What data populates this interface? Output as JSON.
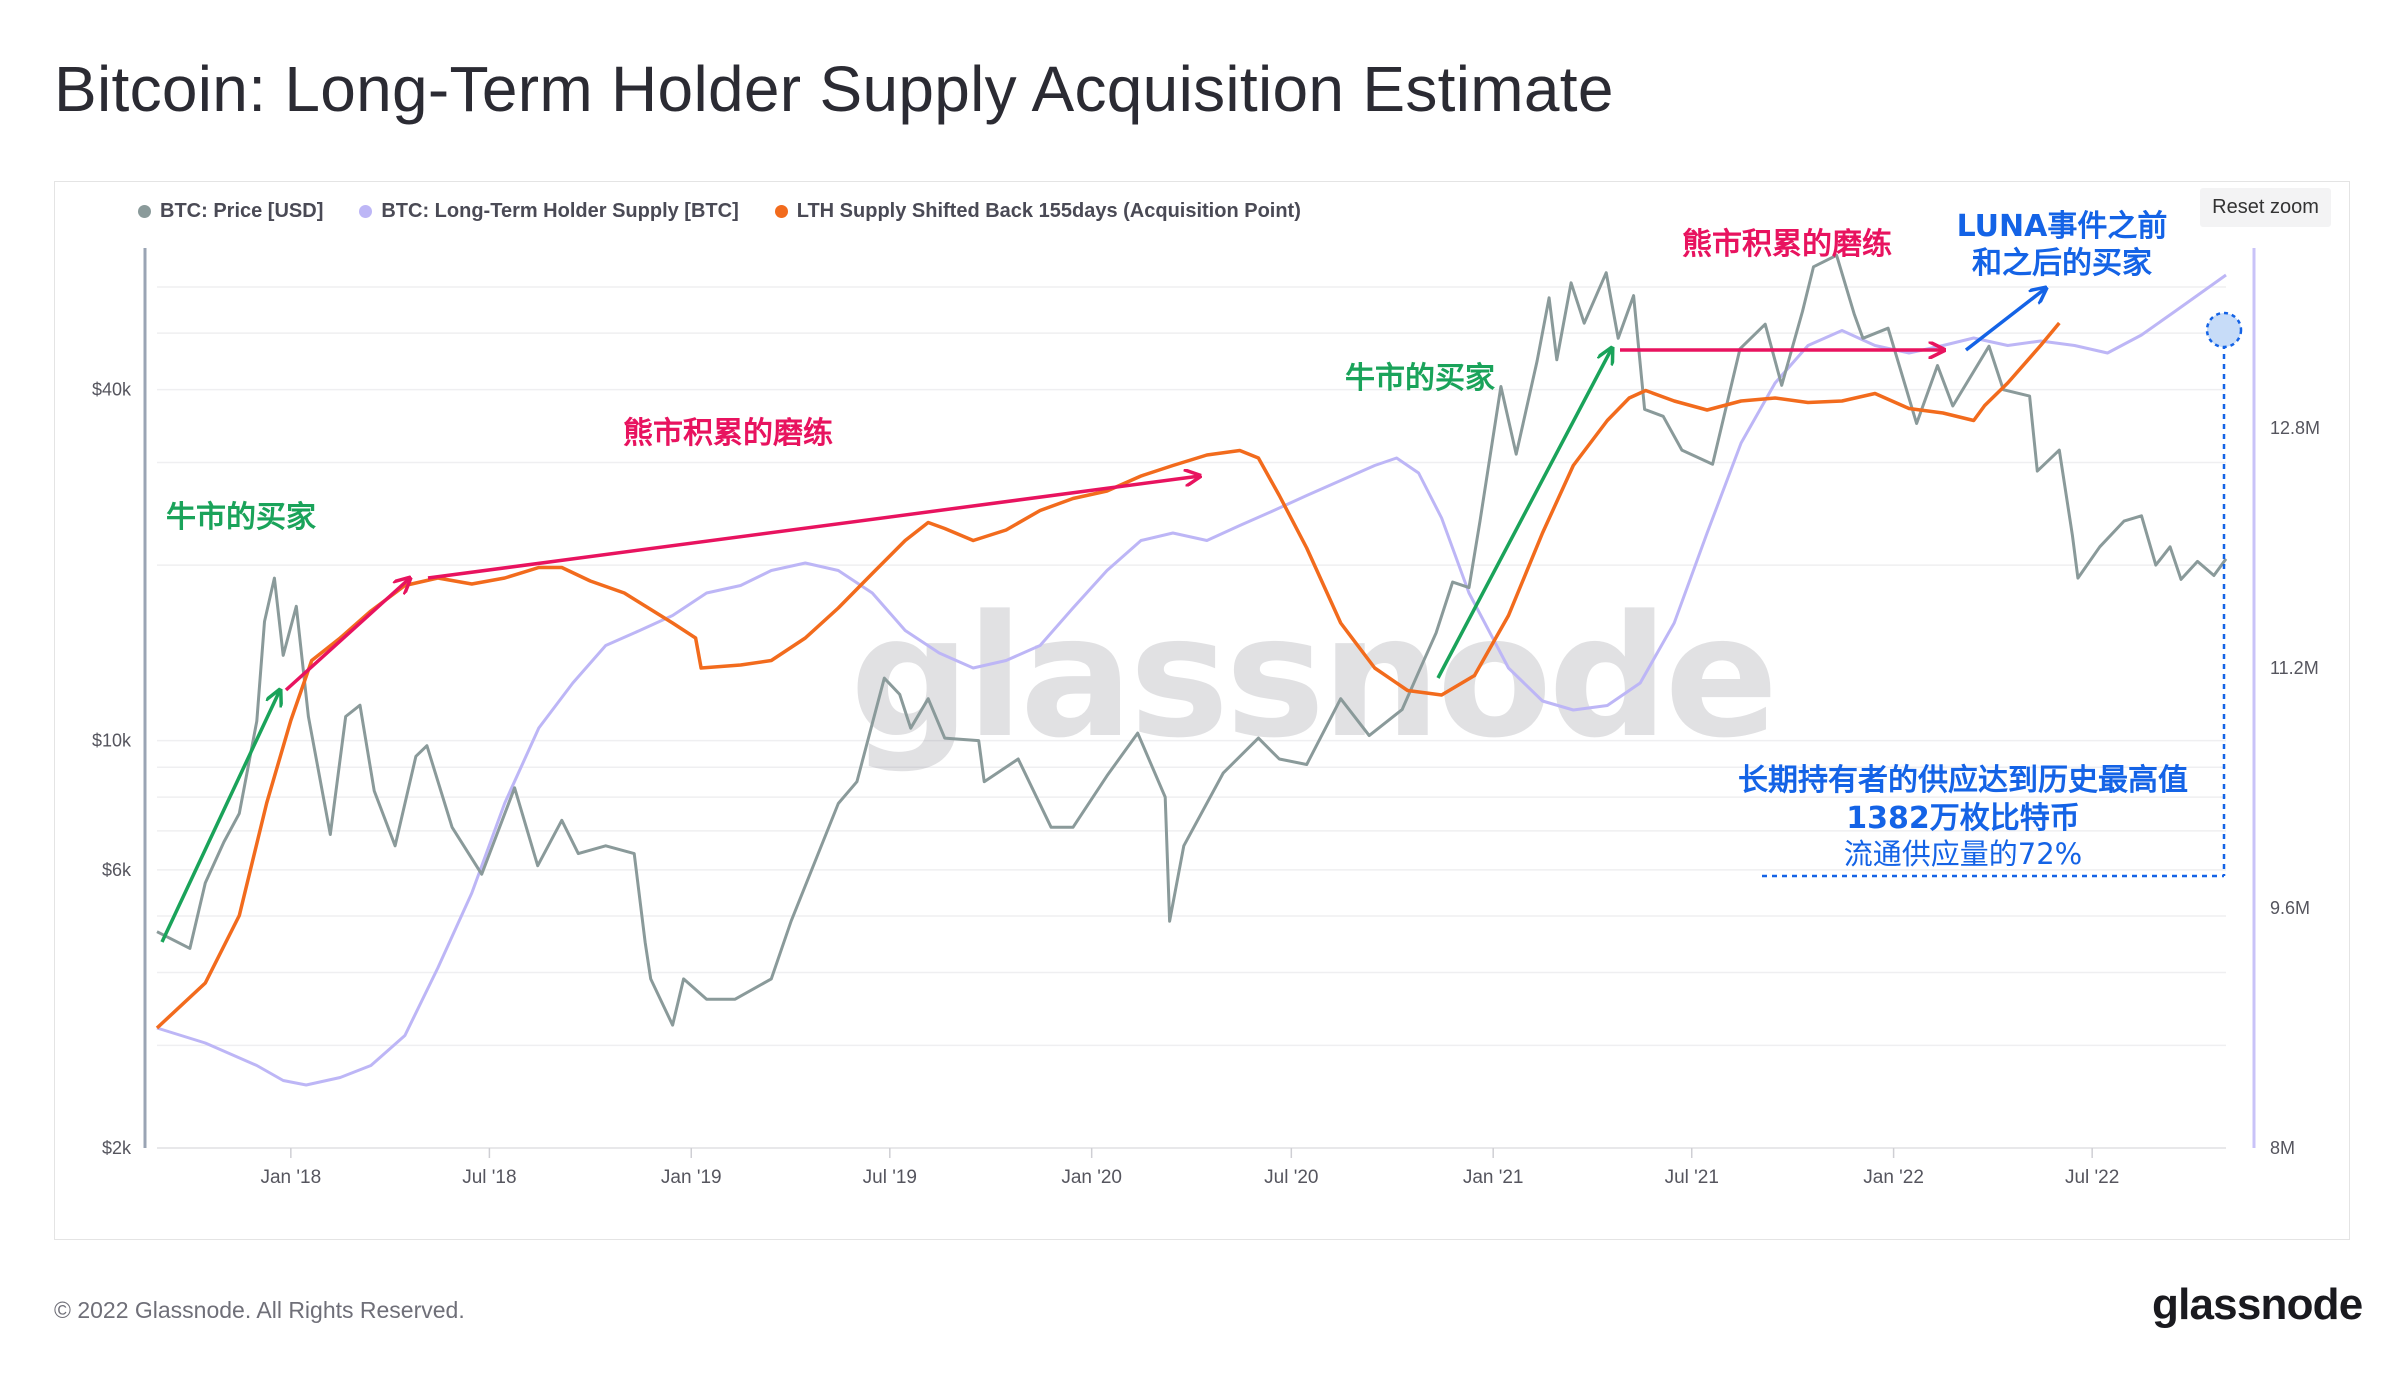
{
  "page": {
    "title": "Bitcoin: Long-Term Holder Supply Acquisition Estimate",
    "footer": "© 2022 Glassnode. All Rights Reserved.",
    "brand": "glassnode",
    "watermark": "glassnode",
    "reset_zoom": "Reset zoom"
  },
  "colors": {
    "price": "#8a9a9a",
    "lth_supply": "#bdb6f6",
    "lth_shifted": "#f26b1d",
    "bull_green": "#1aa35a",
    "bear_pink": "#e8135f",
    "blue": "#1463e6"
  },
  "legend": [
    {
      "label": "BTC: Price [USD]",
      "color": "#8a9a9a"
    },
    {
      "label": "BTC: Long-Term Holder Supply [BTC]",
      "color": "#bdb6f6"
    },
    {
      "label": "LTH Supply Shifted Back 155days (Acquisition Point)",
      "color": "#f26b1d"
    }
  ],
  "annotations": {
    "bull_buyers": "牛市的买家",
    "bear_accumulation": "熊市积累的磨练",
    "luna_line1": "LUNA事件之前",
    "luna_line2": "和之后的买家",
    "ath_line1": "长期持有者的供应达到历史最高值",
    "ath_line2": "1382万枚比特币",
    "ath_line3": "流通供应量的72%"
  },
  "chart_data": {
    "type": "line",
    "title": "Bitcoin: Long-Term Holder Supply Acquisition Estimate",
    "x_ticks": [
      "Jan '18",
      "Jul '18",
      "Jan '19",
      "Jul '19",
      "Jan '20",
      "Jul '20",
      "Jan '21",
      "Jul '21",
      "Jan '22",
      "Jul '22"
    ],
    "y_left": {
      "scale": "log",
      "ticks": [
        "$2k",
        "$6k",
        "$10k",
        "$40k"
      ],
      "tick_values": [
        2000,
        6000,
        10000,
        40000
      ],
      "range": [
        2000,
        70000
      ]
    },
    "y_right": {
      "scale": "linear",
      "ticks": [
        "8M",
        "9.6M",
        "11.2M",
        "12.8M"
      ],
      "tick_values": [
        8.0,
        9.6,
        11.2,
        12.8
      ],
      "range": [
        8.0,
        14.0
      ],
      "unit": "M BTC"
    },
    "series": [
      {
        "name": "BTC: Price [USD]",
        "axis": "left",
        "points": [
          [
            "2017-09-01",
            4700
          ],
          [
            "2017-10-01",
            4400
          ],
          [
            "2017-10-15",
            5700
          ],
          [
            "2017-11-01",
            6700
          ],
          [
            "2017-11-15",
            7500
          ],
          [
            "2017-12-01",
            10800
          ],
          [
            "2017-12-08",
            16000
          ],
          [
            "2017-12-17",
            19000
          ],
          [
            "2017-12-25",
            14000
          ],
          [
            "2018-01-06",
            17000
          ],
          [
            "2018-01-17",
            11000
          ],
          [
            "2018-02-06",
            6900
          ],
          [
            "2018-02-20",
            11000
          ],
          [
            "2018-03-05",
            11500
          ],
          [
            "2018-03-18",
            8200
          ],
          [
            "2018-04-06",
            6600
          ],
          [
            "2018-04-25",
            9400
          ],
          [
            "2018-05-05",
            9800
          ],
          [
            "2018-05-28",
            7100
          ],
          [
            "2018-06-24",
            5900
          ],
          [
            "2018-07-24",
            8300
          ],
          [
            "2018-08-14",
            6100
          ],
          [
            "2018-09-05",
            7300
          ],
          [
            "2018-09-20",
            6400
          ],
          [
            "2018-10-15",
            6600
          ],
          [
            "2018-11-10",
            6400
          ],
          [
            "2018-11-20",
            4500
          ],
          [
            "2018-11-25",
            3900
          ],
          [
            "2018-12-15",
            3250
          ],
          [
            "2018-12-25",
            3900
          ],
          [
            "2019-01-15",
            3600
          ],
          [
            "2019-02-10",
            3600
          ],
          [
            "2019-03-15",
            3900
          ],
          [
            "2019-04-02",
            4900
          ],
          [
            "2019-05-15",
            7800
          ],
          [
            "2019-06-01",
            8500
          ],
          [
            "2019-06-26",
            12800
          ],
          [
            "2019-07-10",
            12000
          ],
          [
            "2019-07-20",
            10500
          ],
          [
            "2019-08-05",
            11800
          ],
          [
            "2019-08-20",
            10100
          ],
          [
            "2019-09-20",
            10000
          ],
          [
            "2019-09-25",
            8500
          ],
          [
            "2019-10-26",
            9300
          ],
          [
            "2019-11-25",
            7100
          ],
          [
            "2019-12-15",
            7100
          ],
          [
            "2020-01-15",
            8700
          ],
          [
            "2020-02-12",
            10300
          ],
          [
            "2020-03-08",
            8000
          ],
          [
            "2020-03-12",
            4900
          ],
          [
            "2020-03-25",
            6600
          ],
          [
            "2020-04-30",
            8800
          ],
          [
            "2020-06-01",
            10100
          ],
          [
            "2020-06-20",
            9300
          ],
          [
            "2020-07-15",
            9100
          ],
          [
            "2020-08-15",
            11800
          ],
          [
            "2020-09-10",
            10200
          ],
          [
            "2020-10-10",
            11300
          ],
          [
            "2020-10-25",
            13100
          ],
          [
            "2020-11-10",
            15300
          ],
          [
            "2020-11-25",
            18700
          ],
          [
            "2020-12-10",
            18300
          ],
          [
            "2020-12-20",
            23800
          ],
          [
            "2021-01-08",
            40500
          ],
          [
            "2021-01-22",
            31000
          ],
          [
            "2021-02-10",
            44800
          ],
          [
            "2021-02-21",
            57500
          ],
          [
            "2021-02-28",
            45000
          ],
          [
            "2021-03-13",
            61000
          ],
          [
            "2021-03-25",
            52000
          ],
          [
            "2021-04-14",
            63500
          ],
          [
            "2021-04-25",
            49000
          ],
          [
            "2021-05-09",
            58000
          ],
          [
            "2021-05-19",
            37000
          ],
          [
            "2021-06-05",
            36000
          ],
          [
            "2021-06-22",
            31500
          ],
          [
            "2021-07-20",
            29800
          ],
          [
            "2021-08-14",
            47000
          ],
          [
            "2021-09-06",
            51800
          ],
          [
            "2021-09-21",
            40700
          ],
          [
            "2021-10-10",
            54500
          ],
          [
            "2021-10-20",
            65000
          ],
          [
            "2021-11-10",
            68000
          ],
          [
            "2021-11-26",
            54000
          ],
          [
            "2021-12-04",
            49000
          ],
          [
            "2021-12-27",
            51000
          ],
          [
            "2022-01-22",
            35000
          ],
          [
            "2022-02-10",
            44000
          ],
          [
            "2022-02-24",
            37500
          ],
          [
            "2022-03-29",
            47500
          ],
          [
            "2022-04-11",
            40000
          ],
          [
            "2022-05-05",
            39000
          ],
          [
            "2022-05-12",
            29000
          ],
          [
            "2022-06-01",
            31500
          ],
          [
            "2022-06-13",
            22500
          ],
          [
            "2022-06-18",
            19000
          ],
          [
            "2022-07-08",
            21500
          ],
          [
            "2022-07-30",
            23800
          ],
          [
            "2022-08-15",
            24300
          ],
          [
            "2022-08-28",
            20000
          ],
          [
            "2022-09-10",
            21500
          ],
          [
            "2022-09-20",
            18900
          ],
          [
            "2022-10-05",
            20300
          ],
          [
            "2022-10-20",
            19200
          ],
          [
            "2022-10-31",
            20500
          ]
        ]
      },
      {
        "name": "BTC: Long-Term Holder Supply [BTC]",
        "axis": "right",
        "points": [
          [
            "2017-09-01",
            8.8
          ],
          [
            "2017-10-15",
            8.7
          ],
          [
            "2017-12-01",
            8.55
          ],
          [
            "2017-12-25",
            8.45
          ],
          [
            "2018-01-15",
            8.42
          ],
          [
            "2018-02-15",
            8.47
          ],
          [
            "2018-03-15",
            8.55
          ],
          [
            "2018-04-15",
            8.75
          ],
          [
            "2018-05-15",
            9.2
          ],
          [
            "2018-06-15",
            9.7
          ],
          [
            "2018-07-15",
            10.3
          ],
          [
            "2018-08-15",
            10.8
          ],
          [
            "2018-09-15",
            11.1
          ],
          [
            "2018-10-15",
            11.35
          ],
          [
            "2018-11-15",
            11.45
          ],
          [
            "2018-12-15",
            11.55
          ],
          [
            "2019-01-15",
            11.7
          ],
          [
            "2019-02-15",
            11.75
          ],
          [
            "2019-03-15",
            11.85
          ],
          [
            "2019-04-15",
            11.9
          ],
          [
            "2019-05-15",
            11.85
          ],
          [
            "2019-06-15",
            11.7
          ],
          [
            "2019-07-15",
            11.45
          ],
          [
            "2019-08-15",
            11.3
          ],
          [
            "2019-09-15",
            11.2
          ],
          [
            "2019-10-15",
            11.25
          ],
          [
            "2019-11-15",
            11.35
          ],
          [
            "2019-12-15",
            11.6
          ],
          [
            "2020-01-15",
            11.85
          ],
          [
            "2020-02-15",
            12.05
          ],
          [
            "2020-03-15",
            12.1
          ],
          [
            "2020-04-15",
            12.05
          ],
          [
            "2020-05-15",
            12.15
          ],
          [
            "2020-06-15",
            12.25
          ],
          [
            "2020-07-15",
            12.35
          ],
          [
            "2020-08-15",
            12.45
          ],
          [
            "2020-09-15",
            12.55
          ],
          [
            "2020-10-05",
            12.6
          ],
          [
            "2020-10-25",
            12.5
          ],
          [
            "2020-11-15",
            12.2
          ],
          [
            "2020-12-10",
            11.7
          ],
          [
            "2021-01-15",
            11.2
          ],
          [
            "2021-02-15",
            10.98
          ],
          [
            "2021-03-15",
            10.92
          ],
          [
            "2021-04-15",
            10.95
          ],
          [
            "2021-05-15",
            11.1
          ],
          [
            "2021-06-15",
            11.5
          ],
          [
            "2021-07-15",
            12.1
          ],
          [
            "2021-08-15",
            12.7
          ],
          [
            "2021-09-15",
            13.1
          ],
          [
            "2021-10-15",
            13.35
          ],
          [
            "2021-11-15",
            13.45
          ],
          [
            "2021-12-15",
            13.35
          ],
          [
            "2022-01-15",
            13.3
          ],
          [
            "2022-02-15",
            13.35
          ],
          [
            "2022-03-15",
            13.4
          ],
          [
            "2022-04-15",
            13.35
          ],
          [
            "2022-05-15",
            13.38
          ],
          [
            "2022-06-15",
            13.35
          ],
          [
            "2022-07-15",
            13.3
          ],
          [
            "2022-08-15",
            13.42
          ],
          [
            "2022-09-15",
            13.58
          ],
          [
            "2022-10-31",
            13.82
          ]
        ]
      },
      {
        "name": "LTH Supply Shifted Back 155days (Acquisition Point)",
        "axis": "right",
        "points": [
          [
            "2017-09-01",
            8.8
          ],
          [
            "2017-10-15",
            9.1
          ],
          [
            "2017-11-15",
            9.55
          ],
          [
            "2017-12-10",
            10.3
          ],
          [
            "2018-01-01",
            10.85
          ],
          [
            "2018-01-20",
            11.25
          ],
          [
            "2018-02-15",
            11.4
          ],
          [
            "2018-03-15",
            11.58
          ],
          [
            "2018-04-15",
            11.75
          ],
          [
            "2018-05-15",
            11.8
          ],
          [
            "2018-06-15",
            11.76
          ],
          [
            "2018-07-15",
            11.8
          ],
          [
            "2018-08-15",
            11.87
          ],
          [
            "2018-09-05",
            11.87
          ],
          [
            "2018-10-01",
            11.78
          ],
          [
            "2018-11-01",
            11.7
          ],
          [
            "2018-12-15",
            11.5
          ],
          [
            "2019-01-05",
            11.4
          ],
          [
            "2019-01-10",
            11.2
          ],
          [
            "2019-02-15",
            11.22
          ],
          [
            "2019-03-15",
            11.25
          ],
          [
            "2019-04-15",
            11.4
          ],
          [
            "2019-05-15",
            11.6
          ],
          [
            "2019-06-15",
            11.83
          ],
          [
            "2019-07-15",
            12.05
          ],
          [
            "2019-08-05",
            12.17
          ],
          [
            "2019-08-20",
            12.13
          ],
          [
            "2019-09-15",
            12.05
          ],
          [
            "2019-10-15",
            12.12
          ],
          [
            "2019-11-15",
            12.25
          ],
          [
            "2019-12-15",
            12.33
          ],
          [
            "2020-01-15",
            12.38
          ],
          [
            "2020-02-15",
            12.48
          ],
          [
            "2020-03-15",
            12.55
          ],
          [
            "2020-04-15",
            12.62
          ],
          [
            "2020-05-15",
            12.65
          ],
          [
            "2020-06-01",
            12.6
          ],
          [
            "2020-06-20",
            12.35
          ],
          [
            "2020-07-15",
            12.0
          ],
          [
            "2020-08-15",
            11.5
          ],
          [
            "2020-09-15",
            11.2
          ],
          [
            "2020-10-15",
            11.05
          ],
          [
            "2020-11-15",
            11.02
          ],
          [
            "2020-12-15",
            11.15
          ],
          [
            "2021-01-15",
            11.55
          ],
          [
            "2021-02-15",
            12.1
          ],
          [
            "2021-03-15",
            12.55
          ],
          [
            "2021-04-15",
            12.85
          ],
          [
            "2021-05-05",
            13.0
          ],
          [
            "2021-05-20",
            13.05
          ],
          [
            "2021-06-15",
            12.98
          ],
          [
            "2021-07-15",
            12.92
          ],
          [
            "2021-08-15",
            12.98
          ],
          [
            "2021-09-15",
            13.0
          ],
          [
            "2021-10-15",
            12.97
          ],
          [
            "2021-11-15",
            12.98
          ],
          [
            "2021-12-15",
            13.03
          ],
          [
            "2022-01-15",
            12.93
          ],
          [
            "2022-02-15",
            12.9
          ],
          [
            "2022-03-15",
            12.85
          ],
          [
            "2022-03-25",
            12.95
          ],
          [
            "2022-04-15",
            13.1
          ],
          [
            "2022-05-15",
            13.35
          ],
          [
            "2022-06-01",
            13.5
          ]
        ]
      }
    ]
  }
}
